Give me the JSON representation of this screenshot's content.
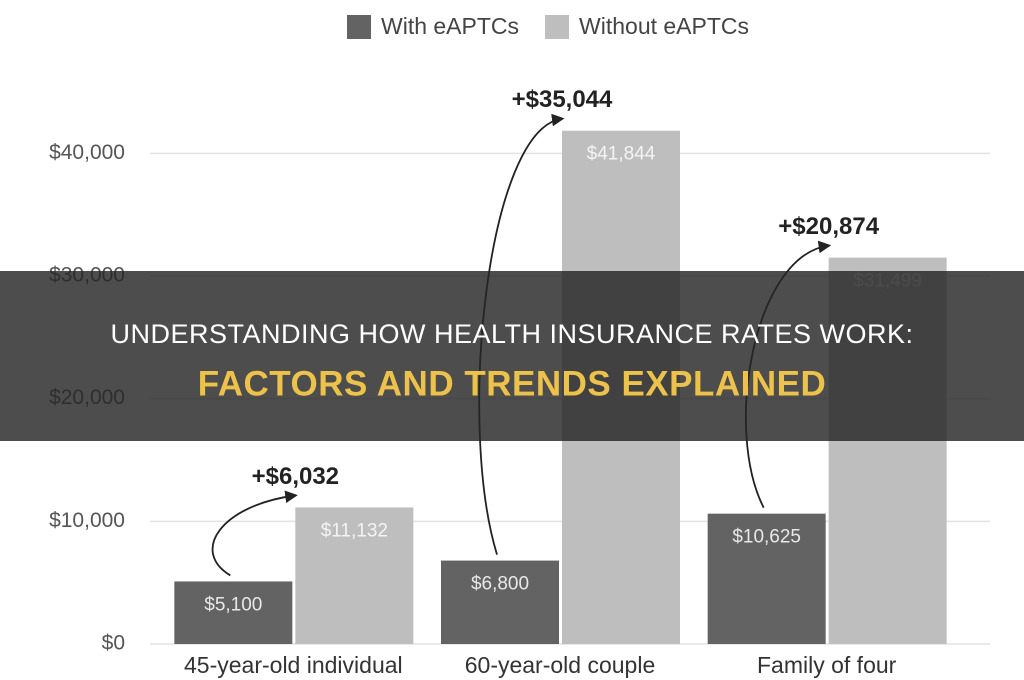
{
  "chart_data": {
    "type": "bar",
    "categories": [
      "45-year-old individual",
      "60-year-old couple",
      "Family of four"
    ],
    "series": [
      {
        "name": "With eAPTCs",
        "color": "#636363",
        "values": [
          5100,
          6800,
          10625
        ],
        "value_labels": [
          "$5,100",
          "$6,800",
          "$10,625"
        ]
      },
      {
        "name": "Without eAPTCs",
        "color": "#bebebe",
        "values": [
          11132,
          41844,
          31499
        ],
        "value_labels": [
          "$11,132",
          "$41,844",
          "$31,499"
        ]
      }
    ],
    "annotations": [
      "+$6,032",
      "+$35,044",
      "+$20,874"
    ],
    "ylim": [
      0,
      45000
    ],
    "yticks": [
      {
        "value": 0,
        "label": "$0"
      },
      {
        "value": 10000,
        "label": "$10,000"
      },
      {
        "value": 20000,
        "label": "$20,000"
      },
      {
        "value": 30000,
        "label": "$30,000"
      },
      {
        "value": 40000,
        "label": "$40,000"
      }
    ],
    "grid": true,
    "legend": "top"
  },
  "banner": {
    "line1": "UNDERSTANDING HOW HEALTH INSURANCE RATES WORK:",
    "line2": "FACTORS AND TRENDS EXPLAINED"
  }
}
